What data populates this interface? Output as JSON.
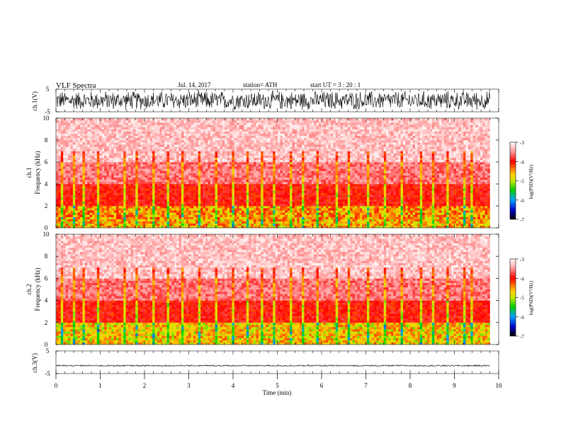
{
  "header": {
    "title": "VLF  Spectra",
    "date": "Jul.  14,  2017",
    "station": "station= ATH",
    "start_ut": "start  UT  =    3  : 20 : 1"
  },
  "colors": {
    "waveform": "#000000",
    "frame": "#555555",
    "spectrogram_background": "#ffffff",
    "colormap": [
      "#000000",
      "#0000c8",
      "#00a0ff",
      "#00d000",
      "#c8e800",
      "#ffd000",
      "#ff7000",
      "#ff0000",
      "#ff9a9a",
      "#ffffff"
    ]
  },
  "chart_data": [
    {
      "type": "line",
      "name": "ch1-waveform",
      "ylabel": "ch.1(V)",
      "ylim": [
        -5,
        5
      ],
      "ytick_labels": [
        "5",
        "-5"
      ],
      "xlim": [
        0,
        10
      ],
      "duration_min": 9.8,
      "amplitude_envelope_v": [
        -4.6,
        4.6
      ],
      "description_style": "dense noise"
    },
    {
      "type": "heatmap",
      "name": "ch1-spectrogram",
      "ylabel_top": "ch.1",
      "ylabel": "Frequency  (kHz)",
      "ylim": [
        0,
        10
      ],
      "ytick_labels": [
        "10",
        "8",
        "6",
        "4",
        "2",
        "0"
      ],
      "xlim": [
        0,
        10
      ],
      "data_xmax_min": 9.8,
      "colorbar": {
        "label": "log(PSD)(V²/Hz)",
        "range": [
          -7,
          -3
        ],
        "tick_labels": [
          "-3",
          "-4",
          "-5",
          "-6",
          "-7"
        ]
      },
      "bands_khz_logpsd": [
        {
          "f": [
            0,
            0.8
          ],
          "logpsd": -4.4
        },
        {
          "f": [
            0.8,
            2.0
          ],
          "logpsd": -4.3
        },
        {
          "f": [
            2.0,
            4.0
          ],
          "logpsd": -4.0
        },
        {
          "f": [
            4.0,
            6.0
          ],
          "logpsd": -3.6
        },
        {
          "f": [
            6.0,
            10.0
          ],
          "logpsd": -3.3
        }
      ],
      "spikes_min": [
        0.1,
        0.4,
        0.6,
        0.95,
        1.5,
        1.8,
        2.2,
        2.5,
        2.85,
        3.2,
        3.6,
        3.95,
        4.3,
        4.65,
        4.9,
        5.3,
        5.55,
        5.9,
        6.3,
        6.6,
        7.0,
        7.4,
        7.8,
        8.2,
        8.5,
        8.8,
        9.2,
        9.35
      ]
    },
    {
      "type": "heatmap",
      "name": "ch2-spectrogram",
      "ylabel_top": "ch.2",
      "ylabel": "Frequency  (kHz)",
      "ylim": [
        0,
        10
      ],
      "ytick_labels": [
        "10",
        "8",
        "6",
        "4",
        "2",
        "0"
      ],
      "xlim": [
        0,
        10
      ],
      "data_xmax_min": 9.8,
      "colorbar": {
        "label": "log(PSD)(V²/Hz)",
        "range": [
          -7,
          -3
        ],
        "tick_labels": [
          "-3",
          "-4",
          "-5",
          "-6",
          "-7"
        ]
      },
      "bands_khz_logpsd": [
        {
          "f": [
            0,
            0.8
          ],
          "logpsd": -4.5
        },
        {
          "f": [
            0.8,
            2.0
          ],
          "logpsd": -4.5
        },
        {
          "f": [
            2.0,
            4.0
          ],
          "logpsd": -4.0
        },
        {
          "f": [
            4.0,
            6.0
          ],
          "logpsd": -3.6
        },
        {
          "f": [
            6.0,
            10.0
          ],
          "logpsd": -3.3
        }
      ],
      "spikes_min": [
        0.1,
        0.4,
        0.6,
        0.95,
        1.5,
        1.8,
        2.2,
        2.5,
        2.85,
        3.2,
        3.6,
        3.95,
        4.3,
        4.65,
        4.9,
        5.3,
        5.55,
        5.9,
        6.3,
        6.6,
        7.0,
        7.4,
        7.8,
        8.2,
        8.5,
        8.8,
        9.2,
        9.35
      ]
    },
    {
      "type": "line",
      "name": "ch3-waveform",
      "ylabel": "ch.3(V)",
      "ylim": [
        -5,
        5
      ],
      "ytick_labels": [
        "5",
        "-5"
      ],
      "xlim": [
        0,
        10
      ],
      "duration_min": 9.8,
      "offset_v": -1.5,
      "amplitude_envelope_v": [
        -1.8,
        -1.2
      ],
      "xlabel": "Time  (min)",
      "xtick_labels": [
        "0",
        "1",
        "2",
        "3",
        "4",
        "5",
        "6",
        "7",
        "8",
        "9",
        "10"
      ]
    }
  ]
}
